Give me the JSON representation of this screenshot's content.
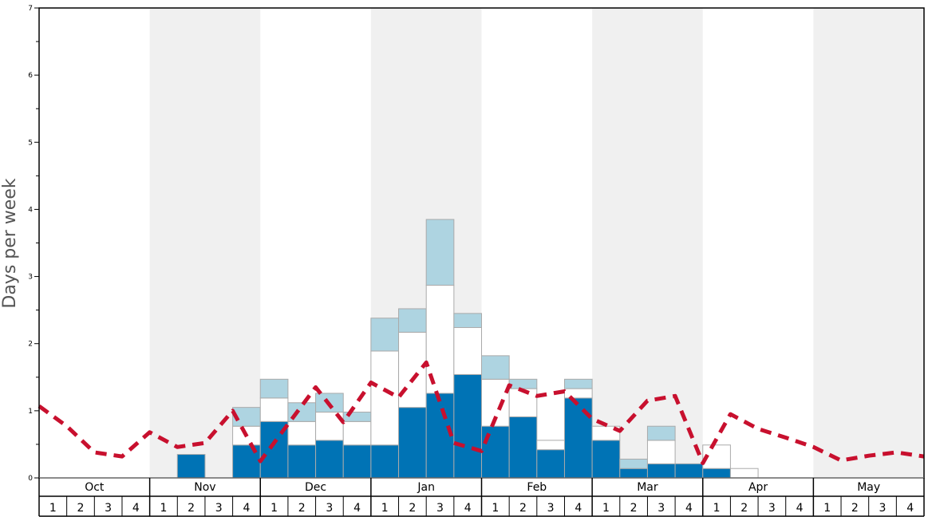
{
  "chart_data": {
    "type": "bar",
    "ylabel": "Days per week",
    "ylim": [
      0,
      7
    ],
    "yticks": [
      0,
      1,
      2,
      3,
      4,
      5,
      6,
      7
    ],
    "months": [
      "Oct",
      "Nov",
      "Dec",
      "Jan",
      "Feb",
      "Mar",
      "Apr",
      "May"
    ],
    "weeks": [
      "1",
      "2",
      "3",
      "4"
    ],
    "colors": {
      "series1": "#0073b5",
      "series2": "#ffffff",
      "series3": "#aed4e1",
      "line": "#c8102e",
      "band": "#f0f0f0",
      "bar_edge": "#aaaaaa"
    },
    "series": [
      {
        "values": [
          0,
          0,
          0,
          0,
          0,
          0.35,
          0,
          0.49,
          0.84,
          0.49,
          0.56,
          0.49,
          0.49,
          1.05,
          1.26,
          1.54,
          0.77,
          0.91,
          0.42,
          1.19,
          0.56,
          0.14,
          0.21,
          0.21,
          0.14,
          0,
          0,
          0,
          0,
          0,
          0,
          0
        ]
      },
      {
        "values": [
          0,
          0,
          0,
          0,
          0,
          0,
          0,
          0.28,
          0.35,
          0.35,
          0.42,
          0.35,
          1.4,
          1.12,
          1.61,
          0.7,
          0.7,
          0.42,
          0.14,
          0.14,
          0.21,
          0,
          0.35,
          0,
          0.35,
          0.14,
          0,
          0,
          0,
          0,
          0,
          0
        ]
      },
      {
        "values": [
          0,
          0,
          0,
          0,
          0,
          0,
          0,
          0.28,
          0.28,
          0.28,
          0.28,
          0.14,
          0.49,
          0.35,
          0.98,
          0.21,
          0.35,
          0.14,
          0,
          0.14,
          0,
          0.14,
          0.21,
          0,
          0,
          0,
          0,
          0,
          0,
          0,
          0,
          0
        ]
      }
    ],
    "line_values": [
      1.07,
      0.77,
      0.38,
      0.32,
      0.68,
      0.46,
      0.52,
      1.0,
      0.25,
      0.8,
      1.35,
      0.83,
      1.42,
      1.2,
      1.72,
      0.52,
      0.4,
      1.38,
      1.22,
      1.29,
      0.88,
      0.7,
      1.15,
      1.22,
      0.22,
      0.95,
      0.73,
      0.6,
      0.46,
      0.26,
      0.33,
      0.38,
      0.32
    ]
  }
}
